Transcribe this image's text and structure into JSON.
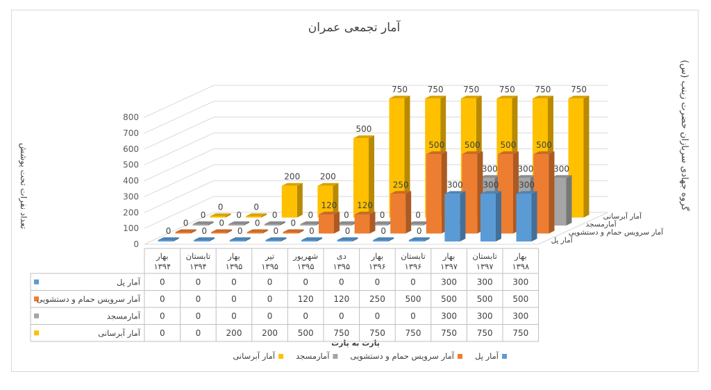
{
  "chart_data": {
    "type": "bar",
    "title": "آمار تجمعی عمران",
    "ylabel_left": "تعداد نفرات تحت پوشش",
    "ylabel_right": "گروه جهادی سربازان حضرت زینب (س)",
    "xlabel": "پارت به پارت",
    "ylim": [
      0,
      800
    ],
    "yticks": [
      "0",
      "100",
      "200",
      "300",
      "400",
      "500",
      "600",
      "700",
      "800"
    ],
    "categories": [
      {
        "line1": "بهار",
        "line2": "۱۳۹۴"
      },
      {
        "line1": "تابستان",
        "line2": "۱۳۹۴"
      },
      {
        "line1": "بهار",
        "line2": "۱۳۹۵"
      },
      {
        "line1": "تیر",
        "line2": "۱۳۹۵"
      },
      {
        "line1": "شهریور",
        "line2": "۱۳۹۵"
      },
      {
        "line1": "دی",
        "line2": "۱۳۹۵"
      },
      {
        "line1": "بهار",
        "line2": "۱۳۹۶"
      },
      {
        "line1": "تابستان",
        "line2": "۱۳۹۶"
      },
      {
        "line1": "بهار",
        "line2": "۱۳۹۷"
      },
      {
        "line1": "تابستان",
        "line2": "۱۳۹۷"
      },
      {
        "line1": "بهار",
        "line2": "۱۳۹۸"
      }
    ],
    "series": [
      {
        "name": "آمار پل",
        "color": "#5b9bd5",
        "values": [
          0,
          0,
          0,
          0,
          0,
          0,
          0,
          0,
          300,
          300,
          300
        ]
      },
      {
        "name": "آمار سرویس حمام و دستشویی",
        "color": "#ed7d31",
        "values": [
          0,
          0,
          0,
          0,
          120,
          120,
          250,
          500,
          500,
          500,
          500
        ]
      },
      {
        "name": "آمارمسجد",
        "color": "#a5a5a5",
        "values": [
          0,
          0,
          0,
          0,
          0,
          0,
          0,
          0,
          300,
          300,
          300
        ]
      },
      {
        "name": "آمار آبرسانی",
        "color": "#ffc000",
        "values": [
          0,
          0,
          200,
          200,
          500,
          750,
          750,
          750,
          750,
          750,
          750
        ]
      }
    ],
    "depth_labels": [
      "آمار آبرسانی",
      "آمارمسجد",
      "آمار سرویس حمام و دستشویی",
      "آمار پل"
    ],
    "legend_position": "bottom",
    "table_below": true,
    "grid": true,
    "view": "3d"
  }
}
